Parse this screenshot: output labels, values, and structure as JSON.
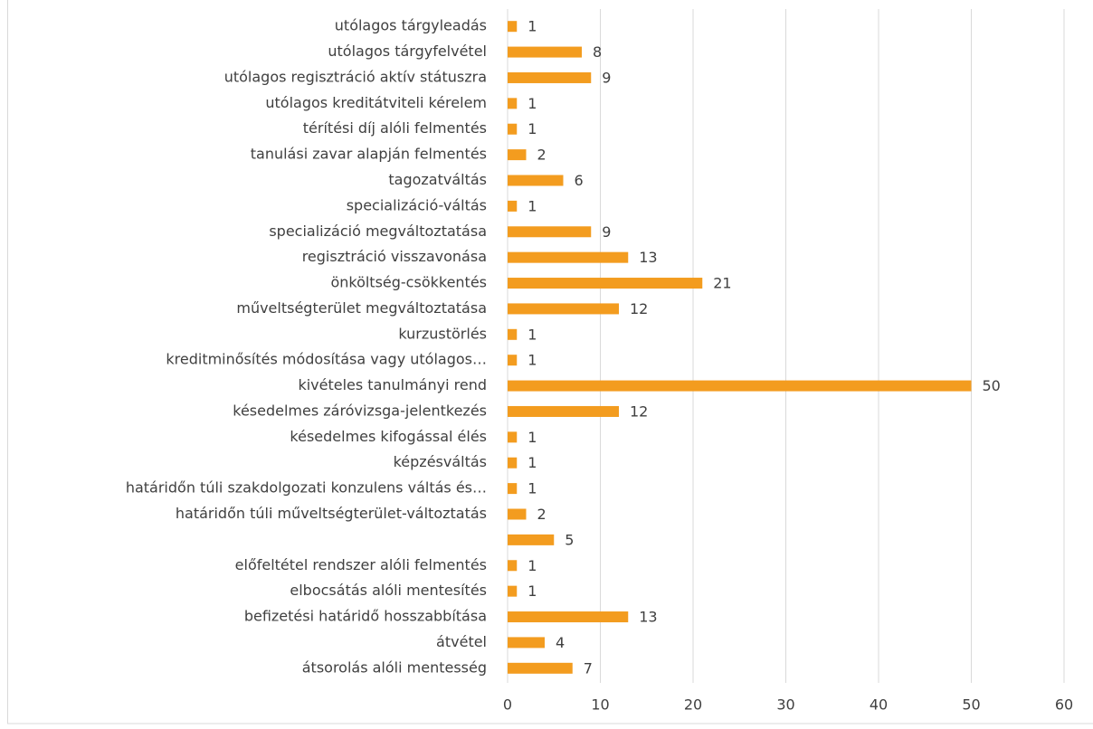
{
  "chart_data": {
    "type": "bar",
    "orientation": "horizontal",
    "categories": [
      "utólagos tárgyleadás",
      "utólagos tárgyfelvétel",
      "utólagos regisztráció aktív státuszra",
      "utólagos kreditátviteli kérelem",
      "térítési díj alóli felmentés",
      "tanulási zavar alapján felmentés",
      "tagozatváltás",
      "specializáció-váltás",
      "specializáció megváltoztatása",
      "regisztráció visszavonása",
      "önköltség-csökkentés",
      "műveltségterület megváltoztatása",
      "kurzustörlés",
      "kreditminősítés módosítása vagy utólagos…",
      "kivételes tanulmányi rend",
      "késedelmes záróvizsga-jelentkezés",
      "késedelmes kifogással élés",
      "képzésváltás",
      "határidőn túli szakdolgozati konzulens váltás és…",
      "határidőn túli műveltségterület-változtatás",
      null,
      "előfeltétel rendszer alóli felmentés",
      "elbocsátás alóli mentesítés",
      "befizetési határidő hosszabbítása",
      "átvétel",
      "átsorolás alóli mentesség"
    ],
    "values": [
      1,
      8,
      9,
      1,
      1,
      2,
      6,
      1,
      9,
      13,
      21,
      12,
      1,
      1,
      50,
      12,
      1,
      1,
      1,
      2,
      5,
      1,
      1,
      13,
      4,
      7
    ],
    "color": "#f39c1f",
    "xlim": [
      0,
      60
    ],
    "xticks": [
      0,
      10,
      20,
      30,
      40,
      50,
      60
    ],
    "grid": true
  }
}
